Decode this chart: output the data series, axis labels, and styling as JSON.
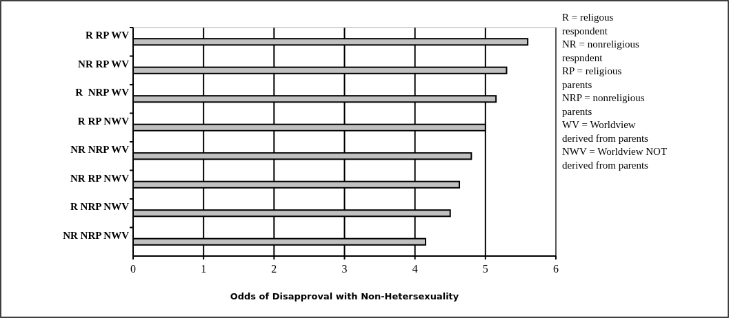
{
  "chart_data": {
    "type": "bar",
    "orientation": "horizontal",
    "xlabel": "Odds of Disapproval with Non-Hetersexuality",
    "categories": [
      "R RP WV",
      "NR RP WV",
      "R  NRP WV",
      "R RP NWV",
      "NR NRP WV",
      "NR RP NWV",
      "R NRP NWV",
      "NR NRP NWV"
    ],
    "values": [
      5.6,
      5.3,
      5.15,
      5.0,
      4.8,
      4.63,
      4.5,
      4.15
    ],
    "color": "#c0c0c0",
    "xlim": [
      0,
      6
    ],
    "xticks": [
      0,
      1,
      2,
      3,
      4,
      5,
      6
    ],
    "grid": "x",
    "annotations": [
      "R = religous respondent",
      "NR = nonreligious respndent",
      "RP = religious parents",
      "NRP = nonreligious parents",
      "WV = Worldview derived from parents",
      "NWV = Worldview NOT derived from parents"
    ]
  }
}
